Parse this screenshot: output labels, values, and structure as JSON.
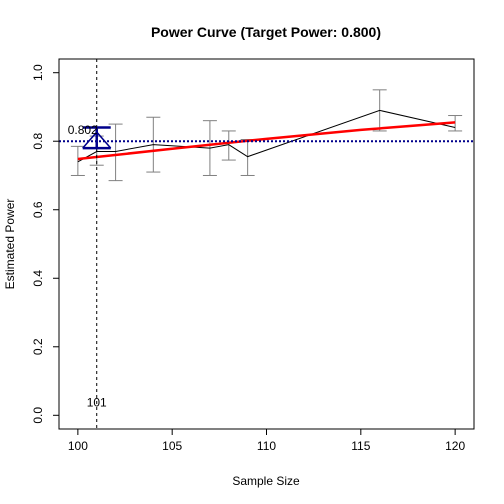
{
  "chart_data": {
    "type": "line",
    "title": "Power Curve (Target Power: 0.800)",
    "xlabel": "Sample Size",
    "ylabel": "Estimated Power",
    "xlim": [
      99,
      121
    ],
    "ylim": [
      -0.04,
      1.04
    ],
    "x_ticks": [
      "100",
      "105",
      "110",
      "115",
      "120"
    ],
    "y_ticks": [
      "0.0",
      "0.2",
      "0.4",
      "0.6",
      "0.8",
      "1.0"
    ],
    "grid": false,
    "target_power": 0.8,
    "estimate_n": 101,
    "estimate_n_label": "101",
    "estimate_power_label": "0.802",
    "estimate_ci": [
      0.78,
      0.84
    ],
    "series": [
      {
        "kind": "observed",
        "color": "#000000",
        "x": [
          100,
          101,
          102,
          104,
          107,
          108,
          109,
          116,
          120
        ],
        "y": [
          0.74,
          0.77,
          0.77,
          0.79,
          0.78,
          0.79,
          0.755,
          0.89,
          0.84
        ],
        "ci_low": [
          0.7,
          0.73,
          0.685,
          0.71,
          0.7,
          0.745,
          0.7,
          0.83,
          0.83
        ],
        "ci_high": [
          0.785,
          0.815,
          0.85,
          0.87,
          0.86,
          0.83,
          0.805,
          0.95,
          0.875
        ]
      },
      {
        "kind": "fitted",
        "color": "#ff0000",
        "x": [
          100,
          105,
          110,
          115,
          120
        ],
        "y": [
          0.748,
          0.778,
          0.807,
          0.833,
          0.855
        ]
      }
    ],
    "colors": {
      "observed": "#000000",
      "fitted": "#ff0000",
      "error_bars": "#808080",
      "target_line": "#00008b",
      "estimate_marker": "#00008b",
      "vertical_line": "#000000"
    }
  }
}
